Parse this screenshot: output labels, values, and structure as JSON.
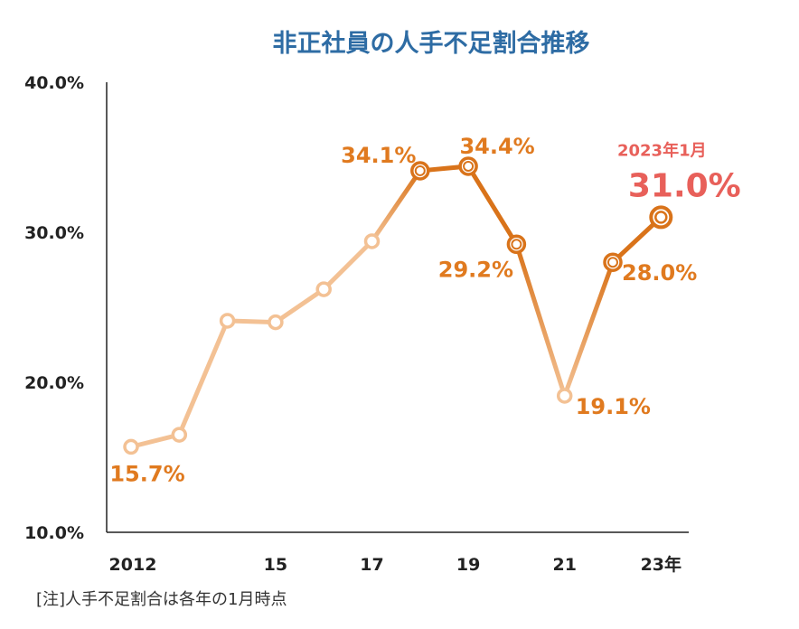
{
  "chart_data": {
    "type": "line",
    "title": "非正社員の人手不足割合推移",
    "x": [
      2012,
      2013,
      2014,
      2015,
      2016,
      2017,
      2018,
      2019,
      2020,
      2021,
      2022,
      2023
    ],
    "values": [
      15.7,
      16.5,
      24.1,
      24.0,
      26.2,
      29.4,
      34.1,
      34.4,
      29.2,
      19.1,
      28.0,
      31.0
    ],
    "ylim": [
      10,
      40
    ],
    "yticks": [
      "40.0%",
      "30.0%",
      "20.0%",
      "10.0%"
    ],
    "ytick_values": [
      40,
      30,
      20,
      10
    ],
    "xticks": [
      {
        "x": 2012,
        "label": "2012"
      },
      {
        "x": 2015,
        "label": "15"
      },
      {
        "x": 2017,
        "label": "17"
      },
      {
        "x": 2019,
        "label": "19"
      },
      {
        "x": 2021,
        "label": "21"
      },
      {
        "x": 2023,
        "label": "23年"
      }
    ],
    "annotations": [
      {
        "x": 2012,
        "text": "15.7%"
      },
      {
        "x": 2018,
        "text": "34.1%"
      },
      {
        "x": 2019,
        "text": "34.4%"
      },
      {
        "x": 2020,
        "text": "29.2%"
      },
      {
        "x": 2021,
        "text": "19.1%"
      },
      {
        "x": 2022,
        "text": "28.0%"
      },
      {
        "x": 2023,
        "text": "31.0%",
        "sublabel": "2023年1月"
      }
    ],
    "note": "[注]人手不足割合は各年の1月時点",
    "colors": {
      "light_line": "#f3c194",
      "dark_line": "#d9731a",
      "label": "#e07a1f",
      "highlight": "#e8605a",
      "title": "#2e6ca4"
    }
  }
}
